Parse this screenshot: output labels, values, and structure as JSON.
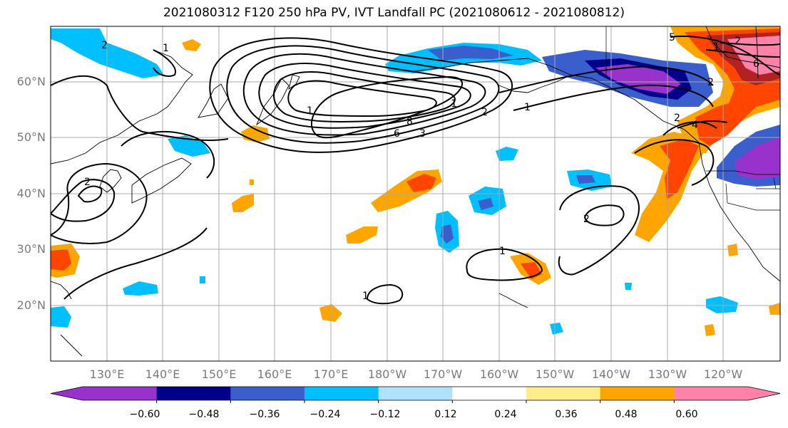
{
  "title": "2021080312 F120 250 hPa PV, IVT Landfall PC (2021080612 - 2021080812)",
  "lat_labels": [
    "60°N",
    "50°N",
    "40°N",
    "30°N",
    "20°N"
  ],
  "lon_labels": [
    "130°E",
    "140°E",
    "150°E",
    "160°E",
    "170°E",
    "180°W",
    "170°W",
    "160°W",
    "150°W",
    "140°W",
    "130°W",
    "120°W"
  ],
  "colorbar": {
    "colors": [
      "#9932CC",
      "#00008B",
      "#3A5FCD",
      "#00BFFF",
      "#B0E2FF",
      "#FFFFFF",
      "#FFEC8B",
      "#FFA500",
      "#FF4500",
      "#B22222",
      "#FF82AB"
    ],
    "tick_labels": [
      "−0.60",
      "−0.48",
      "−0.36",
      "−0.24",
      "−0.12",
      "0.12",
      "0.24",
      "0.36",
      "0.48",
      "0.60"
    ]
  },
  "contour_labels": [
    "2",
    "1",
    "8",
    "6",
    "3",
    "2",
    "1",
    "1",
    "1",
    "5",
    "2",
    "6",
    "4",
    "2",
    "1",
    "2",
    "1",
    "1",
    "2",
    "2"
  ]
}
